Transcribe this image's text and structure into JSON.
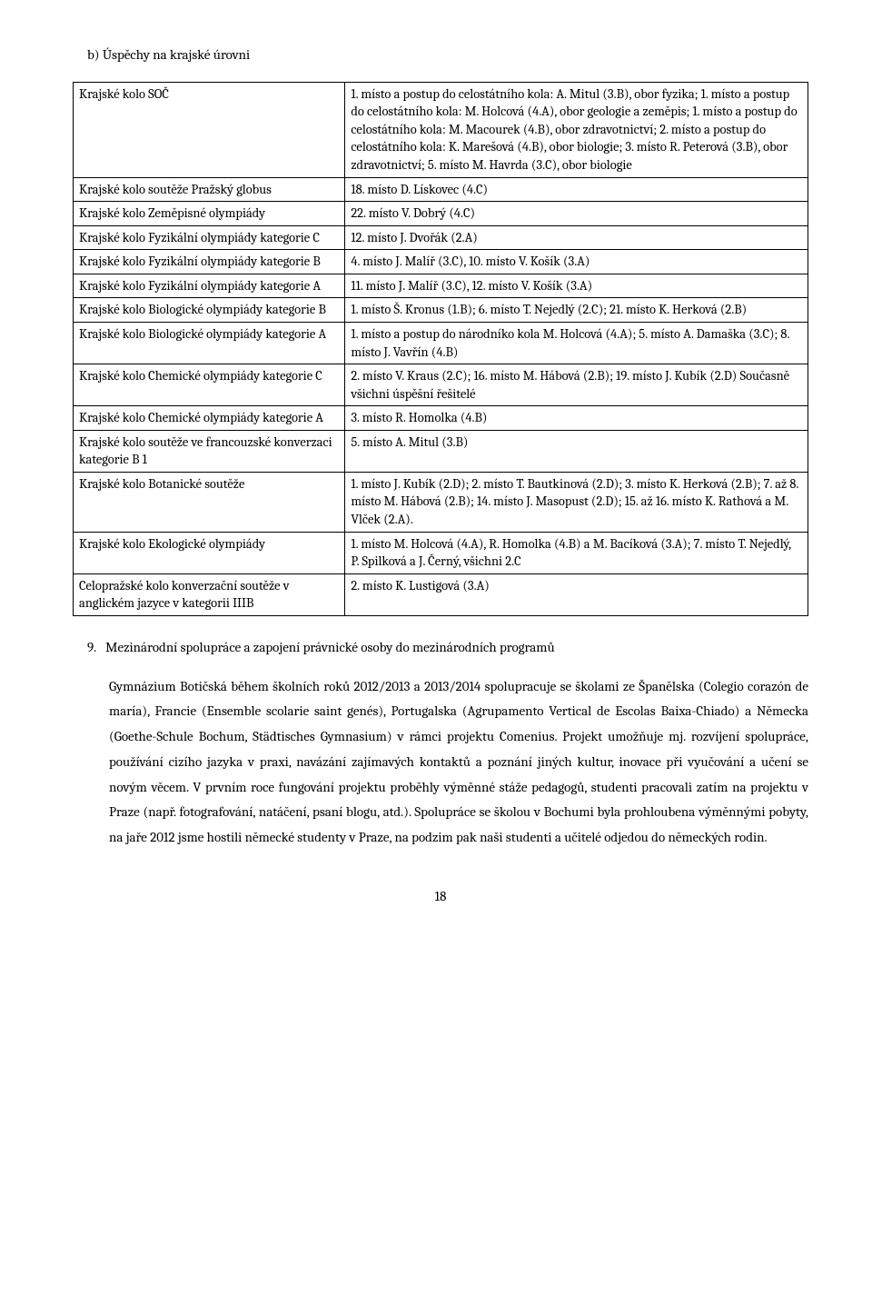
{
  "heading_b": "b)   Úspěchy na krajské úrovni",
  "table": {
    "rows": [
      {
        "left": "Krajské kolo SOČ",
        "right": "1. místo a postup do celostátního kola: A. Mitul (3.B), obor fyzika; 1. místo a postup do celostátního kola: M. Holcová (4.A), obor geologie a zeměpis; 1. místo a postup do celostátního kola: M. Macourek (4.B), obor zdravotnictví; 2. místo a postup do celostátního kola: K. Marešová (4.B), obor biologie; 3. místo R. Peterová (3.B), obor zdravotnictví; 5. místo M. Havrda (3.C), obor biologie"
      },
      {
        "left": "Krajské kolo soutěže Pražský globus",
        "right": "18. místo D. Lískovec (4.C)"
      },
      {
        "left": "Krajské kolo Zeměpisné olympiády",
        "right": "22. místo V. Dobrý (4.C)"
      },
      {
        "left": "Krajské kolo Fyzikální olympiády kategorie C",
        "right": "12. místo J. Dvořák (2.A)"
      },
      {
        "left": "Krajské kolo Fyzikální olympiády kategorie B",
        "right": "4. místo J. Malíř (3.C), 10. místo V. Košík (3.A)"
      },
      {
        "left": "Krajské kolo Fyzikální olympiády kategorie A",
        "right": "11. místo J. Malíř (3.C), 12. místo V. Košík (3.A)"
      },
      {
        "left": "Krajské kolo Biologické olympiády kategorie B",
        "right": "1. místo Š. Kronus (1.B); 6. místo T. Nejedlý (2.C); 21. místo K. Herková (2.B)"
      },
      {
        "left": "Krajské kolo Biologické olympiády kategorie A",
        "right": "1. místo a postup do národníko kola M. Holcová (4.A); 5. místo A. Damaška (3.C); 8. místo J. Vavřín (4.B)"
      },
      {
        "left": "Krajské kolo Chemické olympiády kategorie C",
        "right": "2. místo V. Kraus (2.C); 16. místo M. Hábová (2.B); 19. místo J. Kubík (2.D) Současně všichni úspěšní řešitelé"
      },
      {
        "left": "Krajské kolo Chemické olympiády kategorie A",
        "right": "3. místo R. Homolka (4.B)"
      },
      {
        "left": "Krajské kolo soutěže ve francouzské konverzaci kategorie B 1",
        "right": "5. místo A. Mitul (3.B)"
      },
      {
        "left": "Krajské kolo Botanické soutěže",
        "right": "1. místo J. Kubík (2.D); 2. místo T. Bautkinová (2.D); 3. místo K. Herková (2.B); 7. až 8. místo M. Hábová (2.B); 14. místo J. Masopust (2.D); 15. až 16. místo K. Rathová a M. Vlček (2.A)."
      },
      {
        "left": " Krajské kolo Ekologické olympiády",
        "right": " 1. místo M. Holcová (4.A), R. Homolka (4.B) a M. Bacíková (3.A); 7. místo T. Nejedlý, P. Spilková a J. Černý, všichni 2.C"
      },
      {
        "left": "Celopražské kolo konverzační soutěže v anglickém jazyce v kategorii IIIB",
        "right": "2. místo K. Lustigová (3.A)"
      }
    ]
  },
  "numbered": {
    "marker": "9.",
    "text": "Mezinárodní spolupráce a zapojení právnické osoby do mezinárodních programů"
  },
  "body_paragraph": "Gymnázium Botičská během školních roků 2012/2013 a 2013/2014 spolupracuje se školami ze Španělska (Colegio corazón de maría), Francie (Ensemble scolarie saint genés), Portugalska (Agrupamento Vertical de Escolas Baixa-Chiado) a Německa (Goethe-Schule Bochum, Städtisches Gymnasium) v rámci projektu Comenius. Projekt umožňuje mj. rozvíjení spolupráce, používání cizího jazyka v praxi, navázání zajímavých kontaktů a poznání jiných kultur, inovace při vyučování a učení se novým věcem. V prvním roce fungování projektu proběhly výměnné stáže pedagogů, studenti pracovali zatím na projektu v Praze (např. fotografování, natáčení, psaní blogu, atd.). Spolupráce se školou v Bochumi byla prohloubena výměnnými pobyty, na jaře 2012 jsme hostili německé studenty v Praze, na podzim pak naši studenti a učitelé odjedou do německých rodin.",
  "page_number": "18"
}
